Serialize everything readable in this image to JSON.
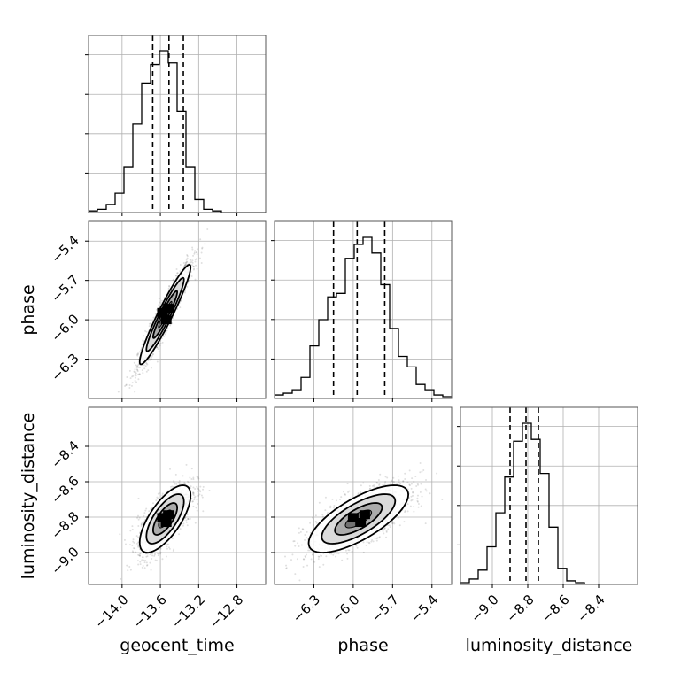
{
  "chart_data": {
    "type": "corner",
    "parameters": [
      "geocent_time",
      "phase",
      "luminosity_distance"
    ],
    "ranges": {
      "geocent_time": [
        -14.35,
        -12.5
      ],
      "phase": [
        -6.6,
        -5.25
      ],
      "luminosity_distance": [
        -9.18,
        -8.18
      ]
    },
    "ticks": {
      "geocent_time": [
        -14.0,
        -13.6,
        -13.2,
        -12.8
      ],
      "phase": [
        -6.3,
        -6.0,
        -5.7,
        -5.4
      ],
      "luminosity_distance": [
        -9.0,
        -8.8,
        -8.6,
        -8.4
      ]
    },
    "tick_labels": {
      "geocent_time": [
        "−14.0",
        "−13.6",
        "−13.2",
        "−12.8"
      ],
      "phase": [
        "−6.3",
        "−6.0",
        "−5.7",
        "−5.4"
      ],
      "luminosity_distance": [
        "−9.0",
        "−8.8",
        "−8.6",
        "−8.4"
      ]
    },
    "histograms": {
      "geocent_time": {
        "edges": [
          -14.35,
          -14.2575,
          -14.165,
          -14.0725,
          -13.98,
          -13.8875,
          -13.795,
          -13.7025,
          -13.61,
          -13.5175,
          -13.425,
          -13.3325,
          -13.24,
          -13.1475,
          -13.055,
          -12.9625,
          -12.87,
          -12.7775,
          -12.685,
          -12.5925,
          -12.5
        ],
        "counts": [
          1,
          2,
          5,
          12,
          28,
          55,
          80,
          92,
          100,
          93,
          63,
          28,
          8,
          2,
          1,
          0,
          0,
          0,
          0,
          0
        ],
        "quantiles": [
          -13.68,
          -13.51,
          -13.36
        ]
      },
      "phase": {
        "edges": [
          -6.6,
          -6.5325,
          -6.465,
          -6.3975,
          -6.33,
          -6.2625,
          -6.195,
          -6.1275,
          -6.06,
          -5.9925,
          -5.925,
          -5.8575,
          -5.79,
          -5.7225,
          -5.655,
          -5.5875,
          -5.52,
          -5.4525,
          -5.385,
          -5.3175,
          -5.25
        ],
        "counts": [
          2,
          3,
          5,
          12,
          30,
          45,
          58,
          60,
          80,
          88,
          92,
          83,
          65,
          40,
          24,
          18,
          8,
          5,
          2,
          1
        ],
        "quantiles": [
          -6.15,
          -5.97,
          -5.76
        ]
      },
      "luminosity_distance": {
        "edges": [
          -9.18,
          -9.13,
          -9.08,
          -9.03,
          -8.98,
          -8.93,
          -8.88,
          -8.83,
          -8.78,
          -8.73,
          -8.68,
          -8.63,
          -8.58,
          -8.53,
          -8.48,
          -8.43,
          -8.38,
          -8.33,
          -8.28,
          -8.23,
          -8.18
        ],
        "counts": [
          1,
          3,
          8,
          21,
          40,
          60,
          80,
          90,
          81,
          62,
          32,
          9,
          2,
          1,
          0,
          0,
          0,
          0,
          0,
          0
        ],
        "quantiles": [
          -8.9,
          -8.81,
          -8.74
        ]
      }
    },
    "correlations": {
      "phase|geocent_time": 0.95,
      "luminosity_distance|geocent_time": 0.7,
      "luminosity_distance|phase": 0.72
    },
    "centers": {
      "geocent_time": -13.55,
      "phase": -5.96,
      "luminosity_distance": -8.81
    },
    "sigmas": {
      "geocent_time": 0.14,
      "phase": 0.2,
      "luminosity_distance": 0.1
    },
    "quantile_line_style": "dashed",
    "grid": true
  }
}
